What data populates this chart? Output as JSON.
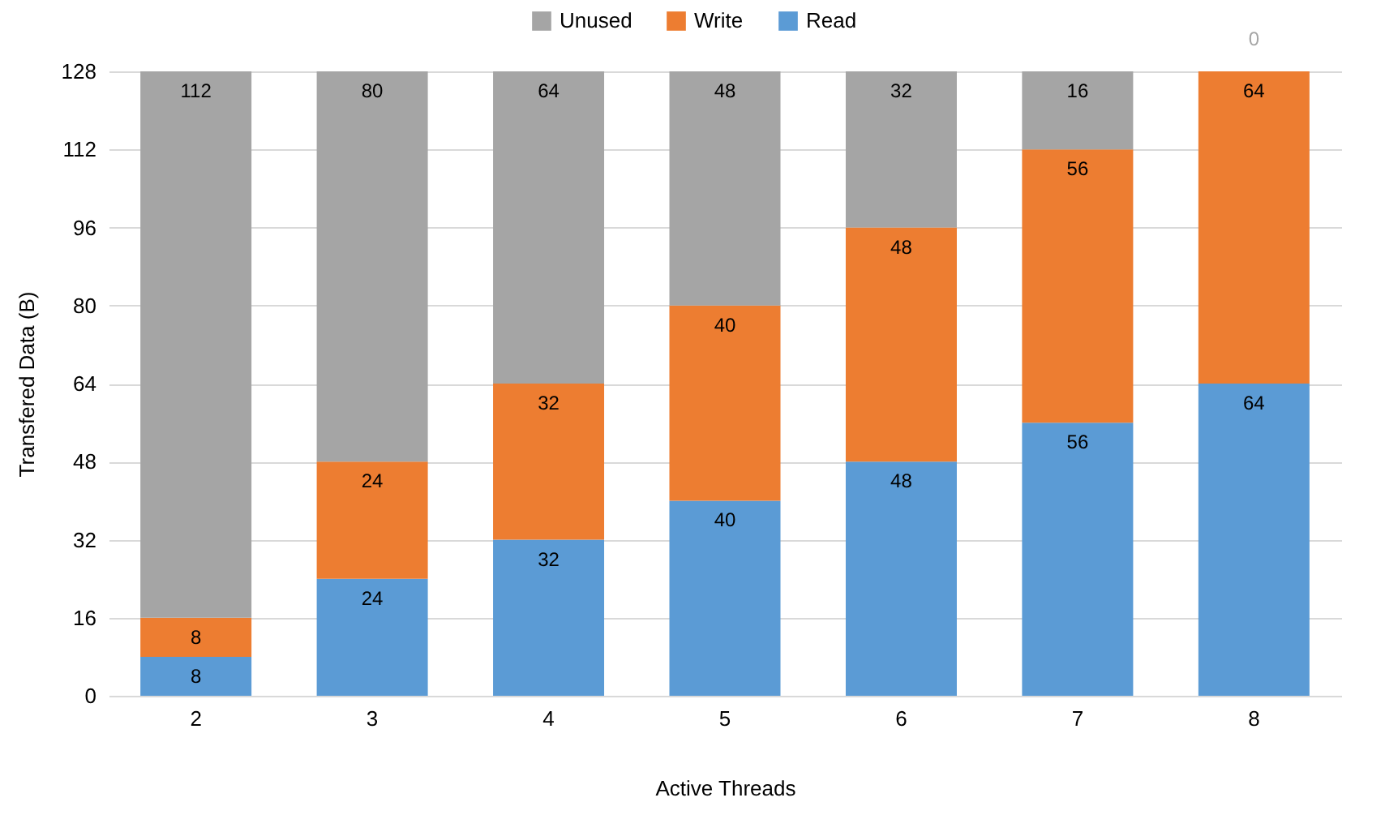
{
  "chart_data": {
    "type": "bar",
    "stacked": true,
    "xlabel": "Active Threads",
    "ylabel": "Transfered Data (B)",
    "categories": [
      "2",
      "3",
      "4",
      "5",
      "6",
      "7",
      "8"
    ],
    "series": [
      {
        "name": "Read",
        "color": "#5b9bd5",
        "values": [
          8,
          24,
          32,
          40,
          48,
          56,
          64
        ]
      },
      {
        "name": "Write",
        "color": "#ed7d31",
        "values": [
          8,
          24,
          32,
          40,
          48,
          56,
          64
        ]
      },
      {
        "name": "Unused",
        "color": "#a5a5a5",
        "values": [
          112,
          80,
          64,
          48,
          32,
          16,
          0
        ]
      }
    ],
    "ylim": [
      0,
      128
    ],
    "yticks": [
      0,
      16,
      32,
      48,
      64,
      80,
      96,
      112,
      128
    ],
    "grid": "y",
    "legend": "top",
    "data_labels": true
  }
}
